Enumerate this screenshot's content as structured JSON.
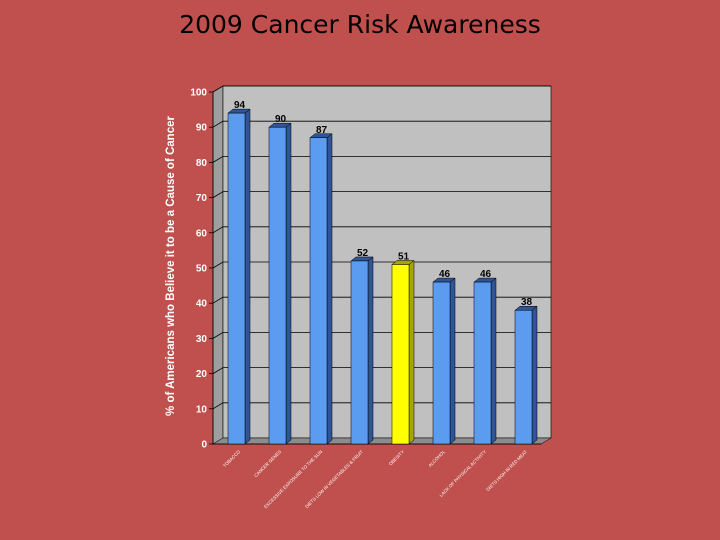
{
  "slide": {
    "title": "2009 Cancer Risk Awareness"
  },
  "chart_data": {
    "type": "bar",
    "title": "2009 Cancer Risk Awareness",
    "ylabel": "% of Americans who Believe it to be a Cause of Cancer",
    "xlabel": "",
    "ylim": [
      0,
      100
    ],
    "yticks": [
      0,
      10,
      20,
      30,
      40,
      50,
      60,
      70,
      80,
      90,
      100
    ],
    "grid": true,
    "legend": "none",
    "categories": [
      "TOBACCO",
      "CANCER GENES",
      "EXCESSIVE EXPOSURE TO THE SUN",
      "DIETS LOW IN VEGETABLES & FRUIT",
      "OBESITY",
      "ALCOHOL",
      "LACK OF PHYSICAL ACTIVITY",
      "DIETS HIGH IN RED MEAT"
    ],
    "values": [
      94,
      90,
      87,
      52,
      51,
      46,
      46,
      38
    ],
    "data_labels": [
      "94",
      "90",
      "87",
      "52",
      "51",
      "46",
      "46",
      "38"
    ],
    "colors": {
      "bar": "#5B9BF0",
      "bar_side": "#2F5597",
      "highlight": "#FFFF00",
      "highlight_side": "#A6A600",
      "plot_bg": "#C0C0C0",
      "background": "#C0504D"
    },
    "highlight_index": 4
  }
}
